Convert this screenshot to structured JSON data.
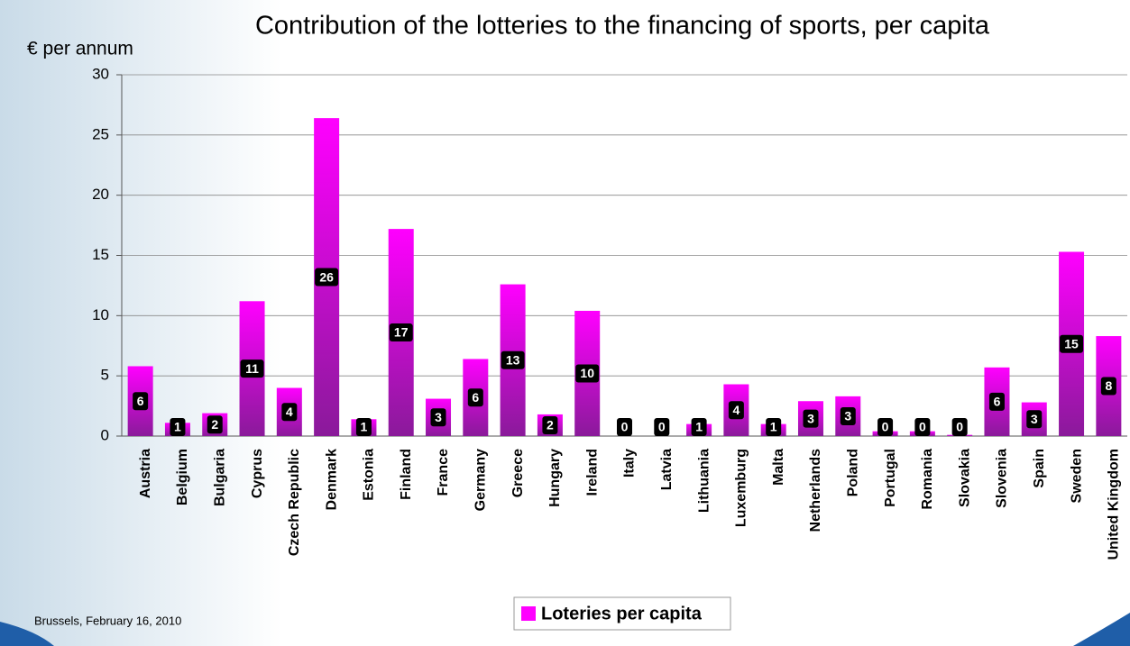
{
  "chart_data": {
    "type": "bar",
    "title": "Contribution of the lotteries to the financing of sports, per capita",
    "y_label": "€ per annum",
    "categories": [
      "Austria",
      "Belgium",
      "Bulgaria",
      "Cyprus",
      "Czech Republic",
      "Denmark",
      "Estonia",
      "Finland",
      "France",
      "Germany",
      "Greece",
      "Hungary",
      "Ireland",
      "Italy",
      "Latvia",
      "Lithuania",
      "Luxemburg",
      "Malta",
      "Netherlands",
      "Poland",
      "Portugal",
      "Romania",
      "Slovakia",
      "Slovenia",
      "Spain",
      "Sweden",
      "United Kingdom"
    ],
    "series": [
      {
        "name": "Loteries per capita",
        "color": "#ff00ff",
        "values": [
          5.8,
          1.1,
          1.9,
          11.2,
          4.0,
          26.4,
          1.4,
          17.2,
          3.1,
          6.4,
          12.6,
          1.8,
          10.4,
          0,
          0,
          1.0,
          4.3,
          1.0,
          2.9,
          3.3,
          0.4,
          0.4,
          0.1,
          5.7,
          2.8,
          15.3,
          8.3
        ],
        "value_labels": [
          "6",
          "1",
          "2",
          "11",
          "4",
          "26",
          "1",
          "17",
          "3",
          "6",
          "13",
          "2",
          "10",
          "0",
          "0",
          "1",
          "4",
          "1",
          "3",
          "3",
          "0",
          "0",
          "0",
          "6",
          "3",
          "15",
          "8"
        ]
      }
    ],
    "ylim": [
      0,
      30
    ],
    "yticks": [
      0,
      5,
      10,
      15,
      20,
      25,
      30
    ],
    "grid": true
  },
  "footer": "Brussels, February 16, 2010"
}
